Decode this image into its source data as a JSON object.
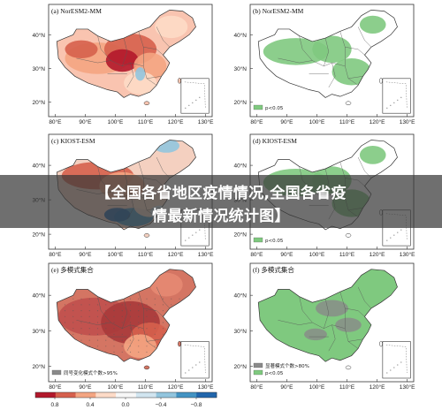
{
  "panels": [
    {
      "title": "(a) NorESM2-MM",
      "kind": "corr",
      "palette": "warm"
    },
    {
      "title": "(b) NorESM2-MM",
      "kind": "sig",
      "legend": [
        {
          "label": "p<0.05",
          "swatch": "#7fc97f"
        }
      ]
    },
    {
      "title": "(c) KIOST-ESM",
      "kind": "corr",
      "palette": "mixed"
    },
    {
      "title": "(d) KIOST-ESM",
      "kind": "sig",
      "legend": [
        {
          "label": "p<0.05",
          "swatch": "#7fc97f"
        }
      ]
    },
    {
      "title": "(e) 多模式集合",
      "kind": "corr",
      "palette": "warm-dark",
      "legend": [
        {
          "label": "同号变化模式个数>95%",
          "swatch": "#8a8a8a"
        }
      ]
    },
    {
      "title": "(f) 多模式集合",
      "kind": "sig",
      "legend": [
        {
          "label": "显著模式个数>80%",
          "swatch": "#8a8a8a"
        },
        {
          "label": "p<0.05",
          "swatch": "#7fc97f"
        }
      ]
    }
  ],
  "axes": {
    "lat_ticks": [
      "40°N",
      "30°N",
      "20°N"
    ],
    "lon_ticks": [
      "80°E",
      "90°E",
      "100°E",
      "110°E",
      "120°E",
      "130°E"
    ]
  },
  "colorbar": {
    "ticks": [
      "0.8",
      "0.4",
      "0.0",
      "−0.4",
      "−0.8"
    ],
    "colors": [
      "#b2182b",
      "#d6604d",
      "#f4a582",
      "#fddbc7",
      "#f7f7f7",
      "#d1e5f0",
      "#92c5de",
      "#4393c3",
      "#2166ac"
    ]
  },
  "colors": {
    "frame": "#333333",
    "sig_green": "#7fc97f",
    "hatch_grey": "#8a8a8a"
  },
  "banner": {
    "line1": "【全国各省地区疫情情况,全国各省疫",
    "line2": "情最新情况统计图】"
  }
}
